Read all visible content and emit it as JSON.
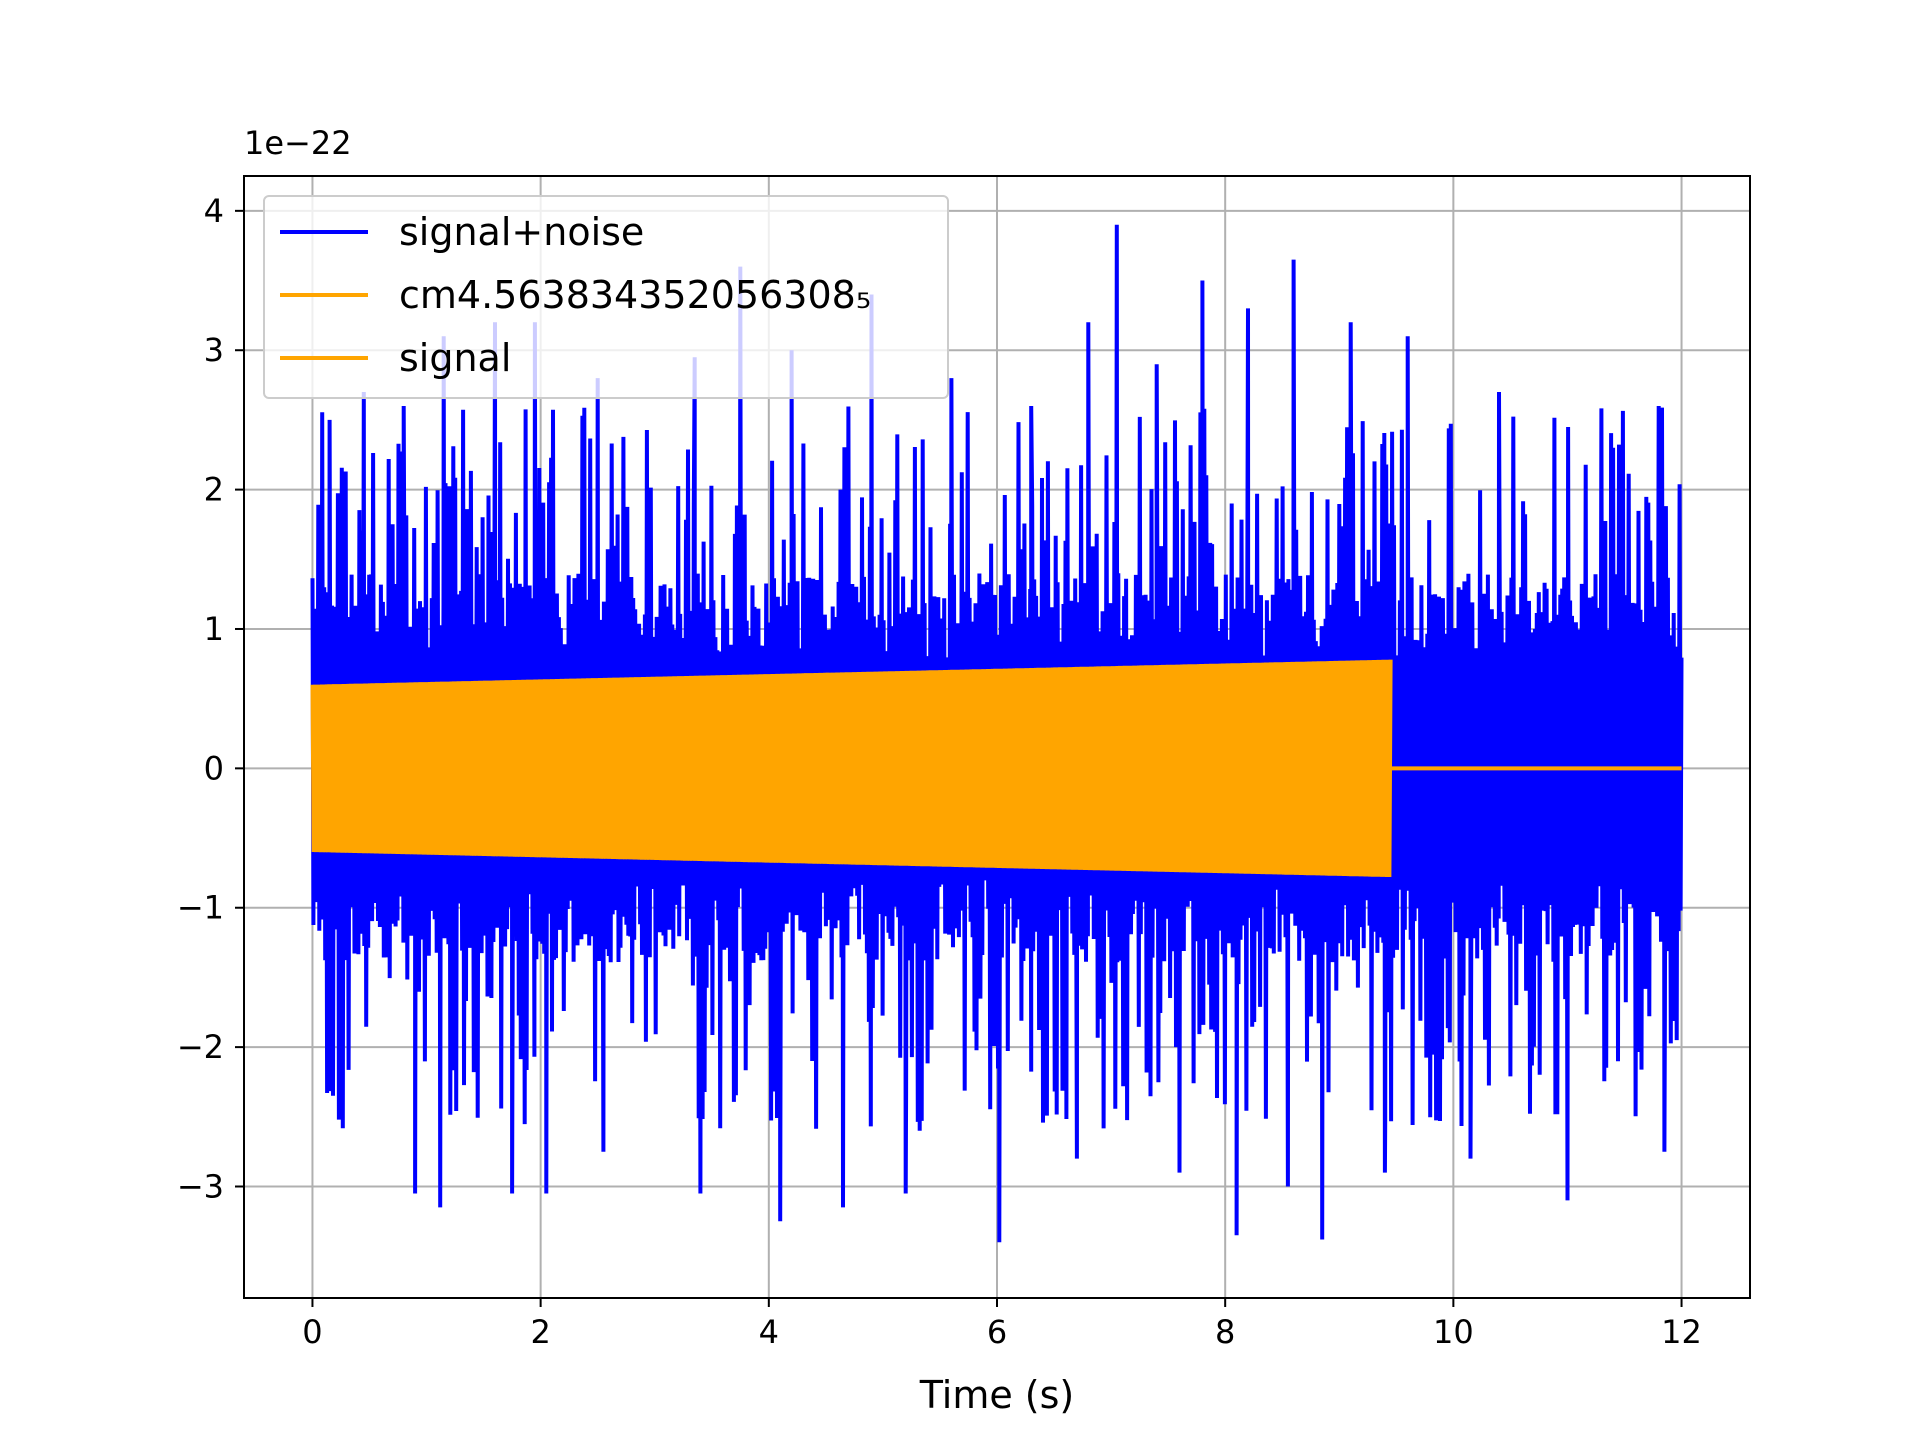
{
  "chart_data": {
    "type": "line",
    "title": "",
    "xlabel": "Time (s)",
    "ylabel": "",
    "y_offset_label": "1e−22",
    "y_scale_exponent": -22,
    "xlim": [
      -0.6,
      12.6
    ],
    "ylim": [
      -3.8,
      4.25
    ],
    "x_ticks": [
      {
        "value": 0,
        "label": "0"
      },
      {
        "value": 2,
        "label": "2"
      },
      {
        "value": 4,
        "label": "4"
      },
      {
        "value": 6,
        "label": "6"
      },
      {
        "value": 8,
        "label": "8"
      },
      {
        "value": 10,
        "label": "10"
      },
      {
        "value": 12,
        "label": "12"
      }
    ],
    "y_ticks": [
      {
        "value": -3,
        "label": "−3"
      },
      {
        "value": -2,
        "label": "−2"
      },
      {
        "value": -1,
        "label": "−1"
      },
      {
        "value": 0,
        "label": "0"
      },
      {
        "value": 1,
        "label": "1"
      },
      {
        "value": 2,
        "label": "2"
      },
      {
        "value": 3,
        "label": "3"
      },
      {
        "value": 4,
        "label": "4"
      }
    ],
    "grid": true,
    "legend_position": "upper-left",
    "series": [
      {
        "name": "signal+noise",
        "color": "#0000ff",
        "x_range": [
          0,
          12
        ],
        "typical_band": [
          -1.4,
          1.4
        ],
        "peaks": [
          {
            "x": 0.15,
            "y": 2.5
          },
          {
            "x": 0.45,
            "y": 2.7
          },
          {
            "x": 0.8,
            "y": 2.6
          },
          {
            "x": 1.15,
            "y": 3.1
          },
          {
            "x": 1.6,
            "y": 3.2
          },
          {
            "x": 1.95,
            "y": 3.2
          },
          {
            "x": 2.5,
            "y": 2.8
          },
          {
            "x": 3.35,
            "y": 2.95
          },
          {
            "x": 3.75,
            "y": 3.6
          },
          {
            "x": 4.2,
            "y": 3.0
          },
          {
            "x": 4.9,
            "y": 3.4
          },
          {
            "x": 5.6,
            "y": 2.8
          },
          {
            "x": 6.3,
            "y": 2.6
          },
          {
            "x": 6.8,
            "y": 3.2
          },
          {
            "x": 7.05,
            "y": 3.9
          },
          {
            "x": 7.4,
            "y": 2.9
          },
          {
            "x": 7.8,
            "y": 3.5
          },
          {
            "x": 8.2,
            "y": 3.3
          },
          {
            "x": 8.6,
            "y": 3.65
          },
          {
            "x": 9.1,
            "y": 3.2
          },
          {
            "x": 9.6,
            "y": 3.1
          },
          {
            "x": 10.4,
            "y": 2.7
          },
          {
            "x": 11.4,
            "y": 2.3
          },
          {
            "x": 11.8,
            "y": 2.6
          }
        ],
        "troughs": [
          {
            "x": 0.9,
            "y": -3.05
          },
          {
            "x": 1.12,
            "y": -3.15
          },
          {
            "x": 1.75,
            "y": -3.05
          },
          {
            "x": 2.05,
            "y": -3.05
          },
          {
            "x": 2.55,
            "y": -2.75
          },
          {
            "x": 3.4,
            "y": -3.05
          },
          {
            "x": 4.1,
            "y": -3.25
          },
          {
            "x": 4.65,
            "y": -3.15
          },
          {
            "x": 5.2,
            "y": -3.05
          },
          {
            "x": 6.02,
            "y": -3.4
          },
          {
            "x": 6.7,
            "y": -2.8
          },
          {
            "x": 7.6,
            "y": -2.9
          },
          {
            "x": 8.1,
            "y": -3.35
          },
          {
            "x": 8.55,
            "y": -3.0
          },
          {
            "x": 8.85,
            "y": -3.38
          },
          {
            "x": 9.4,
            "y": -2.9
          },
          {
            "x": 10.15,
            "y": -2.8
          },
          {
            "x": 11.0,
            "y": -3.1
          },
          {
            "x": 11.85,
            "y": -2.75
          }
        ]
      },
      {
        "name": "cm4.563834352056308₅",
        "color": "#ffa500",
        "x_range": [
          0,
          9.45
        ],
        "amplitude_start": 0.6,
        "amplitude_end": 0.78
      },
      {
        "name": "signal",
        "color": "#ffa500",
        "x_range": [
          9.45,
          12
        ],
        "amplitude_start": 0.0,
        "amplitude_end": 0.0
      }
    ]
  }
}
